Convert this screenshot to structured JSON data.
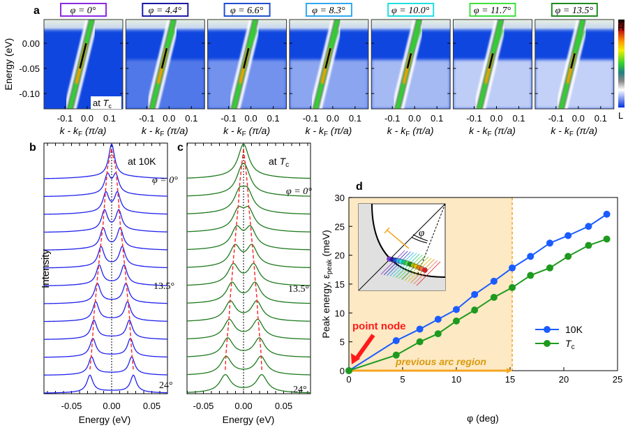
{
  "panel_labels": {
    "a": "a",
    "b": "b",
    "c": "c",
    "d": "d"
  },
  "colors": {
    "blue_10K": "#1a5cff",
    "green_Tc": "#1e9a1e",
    "arc_region": "#fde9c4",
    "arc_line": "#f5a623",
    "node_arrow": "#ff1a1a",
    "curves_b": "#2020ee",
    "curves_c": "#1e7a1e",
    "peak_guide": "#ff2020"
  },
  "panel_a": {
    "ylabel": "Energy (eV)",
    "yticks": [
      "0.00",
      "-0.05",
      "-0.10"
    ],
    "yticks_values": [
      0.0,
      -0.05,
      -0.1
    ],
    "xticks": [
      "-0.1",
      "0.0",
      "0.1"
    ],
    "xlabel_k": "k",
    "xlabel_mid": " - k",
    "xlabel_sub": "F",
    "xlabel_units": "(π/a)",
    "note_at": "at ",
    "note_T": "T",
    "note_sub": "c",
    "colorbar_high": "H",
    "colorbar_low": "L",
    "cuts": [
      {
        "label": "φ = 0°",
        "phi": 0,
        "color": "#8a2be2"
      },
      {
        "label": "φ = 4.4°",
        "phi": 4.4,
        "color": "#1a1aa8"
      },
      {
        "label": "φ = 6.6°",
        "phi": 6.6,
        "color": "#2050d0"
      },
      {
        "label": "φ = 8.3°",
        "phi": 8.3,
        "color": "#30a8f0"
      },
      {
        "label": "φ = 10.0°",
        "phi": 10.0,
        "color": "#20dede"
      },
      {
        "label": "φ = 11.7°",
        "phi": 11.7,
        "color": "#40e040"
      },
      {
        "label": "φ = 13.5°",
        "phi": 13.5,
        "color": "#208a20"
      }
    ]
  },
  "panel_b": {
    "note": "at 10K",
    "ylabel": "Intensity",
    "xlabel": "Energy (eV)",
    "label_first": "φ = 0°",
    "label_mid": "13.5°",
    "label_last": "24°",
    "xticks": [
      "-0.05",
      "0.00",
      "0.05"
    ]
  },
  "panel_c": {
    "note_at": "at ",
    "note_T": "T",
    "note_sub": "c",
    "xlabel": "Energy (eV)",
    "label_first": "φ = 0°",
    "label_mid": "13.5°",
    "label_last": "24°",
    "xticks": [
      "-0.05",
      "0.00",
      "0.05"
    ]
  },
  "chart_data": {
    "type": "line",
    "xlabel": "φ (deg)",
    "ylabel": "Peak energy, ε",
    "ylabel_sub": "peak",
    "ylabel_units": " (meV)",
    "xlim": [
      0,
      25
    ],
    "ylim": [
      0,
      30
    ],
    "xticks": [
      0,
      5,
      10,
      15,
      20,
      25
    ],
    "yticks": [
      0,
      5,
      10,
      15,
      20,
      25,
      30
    ],
    "x": [
      0,
      4.4,
      6.6,
      8.3,
      10.0,
      11.7,
      13.5,
      15.2,
      16.9,
      18.7,
      20.4,
      22.3,
      24.0
    ],
    "series": [
      {
        "name": "10K",
        "values": [
          0,
          5.2,
          7.2,
          8.9,
          10.6,
          13.2,
          15.5,
          17.8,
          19.8,
          22.1,
          23.4,
          25.0,
          27.1
        ]
      },
      {
        "name": "T",
        "name_sub": "c",
        "values": [
          0,
          2.7,
          5.0,
          6.4,
          8.6,
          10.5,
          12.7,
          14.4,
          16.5,
          17.8,
          19.8,
          21.7,
          22.8
        ]
      }
    ],
    "arc_region_limit": 15.2,
    "annotations": {
      "point_node": "point node",
      "arc_region": "previous arc region",
      "inset_angle": "φ"
    },
    "legend_position": "bottom-right"
  }
}
